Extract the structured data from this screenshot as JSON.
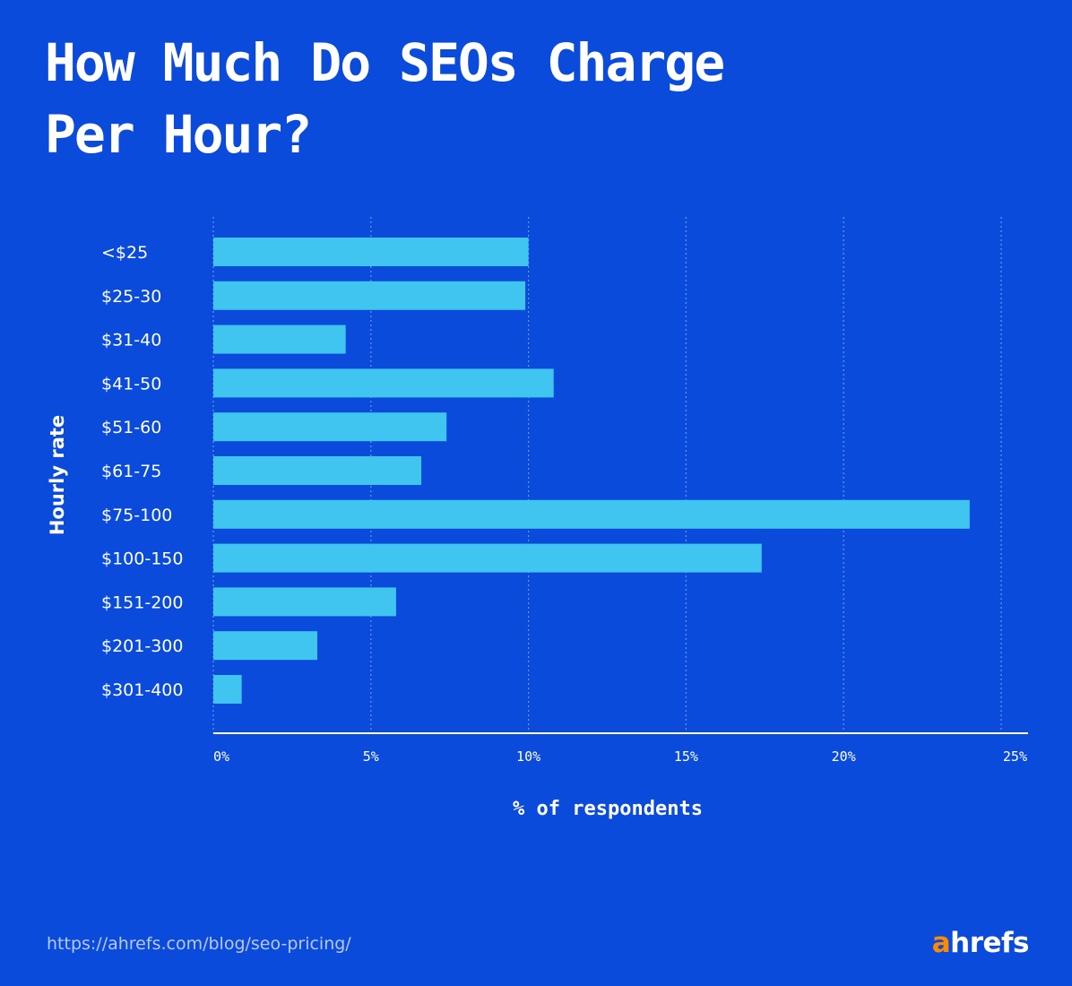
{
  "header": {
    "title": "How Much Do SEOs Charge\nPer Hour?"
  },
  "chart_data": {
    "type": "bar",
    "orientation": "horizontal",
    "title": "How Much Do SEOs Charge Per Hour?",
    "xlabel": "% of respondents",
    "ylabel": "Hourly rate",
    "categories": [
      "<$25",
      "$25-30",
      "$31-40",
      "$41-50",
      "$51-60",
      "$61-75",
      "$75-100",
      "$100-150",
      "$151-200",
      "$201-300",
      "$301-400"
    ],
    "values": [
      10.0,
      9.9,
      4.2,
      10.8,
      7.4,
      6.6,
      24.0,
      17.4,
      5.8,
      3.3,
      0.9
    ],
    "xlim": [
      0,
      25
    ],
    "xticks": [
      0,
      5,
      10,
      15,
      20,
      25
    ],
    "xtick_labels": [
      "0%",
      "5%",
      "10%",
      "15%",
      "20%",
      "25%"
    ],
    "grid": "vertical-dotted",
    "legend": "none",
    "colors": {
      "bar": "#3fc5f0",
      "background": "#0a4bdb",
      "grid": "#6f95ee",
      "axis": "#ffffff"
    }
  },
  "footer": {
    "url": "https://ahrefs.com/blog/seo-pricing/",
    "brand_accent": "a",
    "brand_rest": "hrefs"
  }
}
